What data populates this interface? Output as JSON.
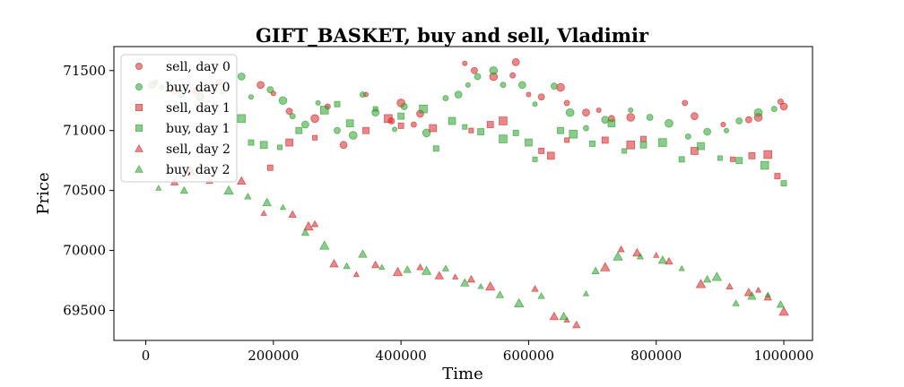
{
  "chart_data": {
    "type": "scatter",
    "title": "GIFT_BASKET, buy and sell, Vladimir",
    "xlabel": "Time",
    "ylabel": "Price",
    "xlim": [
      -50000,
      1045000
    ],
    "ylim": [
      69250,
      71700
    ],
    "xticks": [
      0,
      200000,
      400000,
      600000,
      800000,
      1000000
    ],
    "yticks": [
      69500,
      70000,
      70500,
      71000,
      71500
    ],
    "grid": false,
    "legend_position": "top-left",
    "colors": {
      "sell": "#d62728",
      "buy": "#2ca02c"
    },
    "series": [
      {
        "name": "sell, day 0",
        "marker": "circle",
        "color": "#d62728",
        "points": [
          [
            15000,
            71400
          ],
          [
            45000,
            71330
          ],
          [
            80000,
            71330
          ],
          [
            115000,
            71400
          ],
          [
            180000,
            71380
          ],
          [
            200000,
            71310
          ],
          [
            225000,
            71160
          ],
          [
            265000,
            71100
          ],
          [
            285000,
            71200
          ],
          [
            310000,
            70880
          ],
          [
            345000,
            71300
          ],
          [
            385000,
            71080
          ],
          [
            400000,
            71230
          ],
          [
            420000,
            71050
          ],
          [
            430000,
            71140
          ],
          [
            500000,
            71560
          ],
          [
            515000,
            71500
          ],
          [
            545000,
            71450
          ],
          [
            575000,
            71460
          ],
          [
            580000,
            71570
          ],
          [
            600000,
            71300
          ],
          [
            620000,
            71280
          ],
          [
            650000,
            71360
          ],
          [
            660000,
            71230
          ],
          [
            690000,
            71150
          ],
          [
            710000,
            71170
          ],
          [
            730000,
            71100
          ],
          [
            760000,
            71110
          ],
          [
            845000,
            71230
          ],
          [
            860000,
            71120
          ],
          [
            905000,
            71050
          ],
          [
            945000,
            71090
          ],
          [
            960000,
            71110
          ],
          [
            995000,
            71240
          ],
          [
            1000000,
            71200
          ]
        ]
      },
      {
        "name": "buy, day 0",
        "marker": "circle",
        "color": "#2ca02c",
        "points": [
          [
            10000,
            71380
          ],
          [
            25000,
            71360
          ],
          [
            55000,
            71300
          ],
          [
            85000,
            71280
          ],
          [
            120000,
            71320
          ],
          [
            150000,
            71450
          ],
          [
            165000,
            71280
          ],
          [
            195000,
            71340
          ],
          [
            215000,
            71250
          ],
          [
            230000,
            71120
          ],
          [
            250000,
            71050
          ],
          [
            270000,
            71230
          ],
          [
            300000,
            71000
          ],
          [
            325000,
            70960
          ],
          [
            340000,
            71300
          ],
          [
            360000,
            71150
          ],
          [
            390000,
            71010
          ],
          [
            405000,
            71200
          ],
          [
            440000,
            70980
          ],
          [
            470000,
            71270
          ],
          [
            490000,
            71300
          ],
          [
            505000,
            71380
          ],
          [
            520000,
            71450
          ],
          [
            545000,
            71500
          ],
          [
            560000,
            71380
          ],
          [
            590000,
            71380
          ],
          [
            610000,
            71220
          ],
          [
            640000,
            71370
          ],
          [
            665000,
            71150
          ],
          [
            690000,
            71020
          ],
          [
            720000,
            71090
          ],
          [
            760000,
            71170
          ],
          [
            790000,
            71110
          ],
          [
            820000,
            71060
          ],
          [
            850000,
            70950
          ],
          [
            880000,
            70990
          ],
          [
            910000,
            71000
          ],
          [
            930000,
            71080
          ],
          [
            960000,
            71150
          ],
          [
            985000,
            71180
          ]
        ]
      },
      {
        "name": "sell, day 1",
        "marker": "square",
        "color": "#d62728",
        "points": [
          [
            195000,
            70690
          ],
          [
            225000,
            70900
          ],
          [
            265000,
            70940
          ],
          [
            345000,
            71000
          ],
          [
            380000,
            71100
          ],
          [
            400000,
            71040
          ],
          [
            450000,
            71020
          ],
          [
            510000,
            71000
          ],
          [
            540000,
            71050
          ],
          [
            560000,
            71080
          ],
          [
            620000,
            70830
          ],
          [
            635000,
            70790
          ],
          [
            660000,
            70920
          ],
          [
            720000,
            70920
          ],
          [
            760000,
            70880
          ],
          [
            780000,
            70930
          ],
          [
            860000,
            70830
          ],
          [
            920000,
            70760
          ],
          [
            950000,
            70790
          ],
          [
            975000,
            70800
          ],
          [
            990000,
            70620
          ]
        ]
      },
      {
        "name": "buy, day 1",
        "marker": "square",
        "color": "#2ca02c",
        "points": [
          [
            150000,
            71100
          ],
          [
            165000,
            70900
          ],
          [
            185000,
            70880
          ],
          [
            210000,
            70860
          ],
          [
            240000,
            71000
          ],
          [
            280000,
            71170
          ],
          [
            300000,
            71220
          ],
          [
            320000,
            71060
          ],
          [
            360000,
            71180
          ],
          [
            400000,
            71120
          ],
          [
            435000,
            71180
          ],
          [
            455000,
            70850
          ],
          [
            480000,
            71080
          ],
          [
            500000,
            71030
          ],
          [
            525000,
            70990
          ],
          [
            560000,
            70930
          ],
          [
            580000,
            70980
          ],
          [
            600000,
            70900
          ],
          [
            610000,
            70760
          ],
          [
            650000,
            71000
          ],
          [
            670000,
            70970
          ],
          [
            700000,
            70890
          ],
          [
            730000,
            71060
          ],
          [
            750000,
            70830
          ],
          [
            780000,
            70880
          ],
          [
            810000,
            70900
          ],
          [
            840000,
            70760
          ],
          [
            870000,
            70870
          ],
          [
            900000,
            70770
          ],
          [
            930000,
            70750
          ],
          [
            970000,
            70710
          ],
          [
            1000000,
            70560
          ]
        ]
      },
      {
        "name": "sell, day 2",
        "marker": "triangle",
        "color": "#d62728",
        "points": [
          [
            45000,
            70570
          ],
          [
            70000,
            70660
          ],
          [
            100000,
            70580
          ],
          [
            150000,
            70580
          ],
          [
            185000,
            70310
          ],
          [
            230000,
            70300
          ],
          [
            255000,
            70200
          ],
          [
            265000,
            70220
          ],
          [
            295000,
            69890
          ],
          [
            330000,
            69800
          ],
          [
            360000,
            69880
          ],
          [
            395000,
            69820
          ],
          [
            430000,
            69860
          ],
          [
            460000,
            69790
          ],
          [
            485000,
            69780
          ],
          [
            510000,
            69760
          ],
          [
            540000,
            69700
          ],
          [
            610000,
            69680
          ],
          [
            640000,
            69450
          ],
          [
            660000,
            69420
          ],
          [
            675000,
            69380
          ],
          [
            720000,
            69860
          ],
          [
            745000,
            70010
          ],
          [
            770000,
            69980
          ],
          [
            800000,
            69960
          ],
          [
            820000,
            69910
          ],
          [
            870000,
            69720
          ],
          [
            915000,
            69700
          ],
          [
            945000,
            69650
          ],
          [
            960000,
            69670
          ],
          [
            975000,
            69610
          ],
          [
            1000000,
            69490
          ]
        ]
      },
      {
        "name": "buy, day 2",
        "marker": "triangle",
        "color": "#2ca02c",
        "points": [
          [
            20000,
            70520
          ],
          [
            60000,
            70500
          ],
          [
            130000,
            70500
          ],
          [
            160000,
            70450
          ],
          [
            190000,
            70400
          ],
          [
            215000,
            70360
          ],
          [
            250000,
            70150
          ],
          [
            280000,
            70040
          ],
          [
            315000,
            69870
          ],
          [
            340000,
            69970
          ],
          [
            370000,
            69860
          ],
          [
            410000,
            69840
          ],
          [
            440000,
            69830
          ],
          [
            470000,
            69850
          ],
          [
            500000,
            69730
          ],
          [
            525000,
            69700
          ],
          [
            555000,
            69630
          ],
          [
            585000,
            69560
          ],
          [
            620000,
            69620
          ],
          [
            655000,
            69450
          ],
          [
            690000,
            69640
          ],
          [
            705000,
            69830
          ],
          [
            740000,
            69950
          ],
          [
            775000,
            69950
          ],
          [
            810000,
            69920
          ],
          [
            840000,
            69850
          ],
          [
            880000,
            69760
          ],
          [
            895000,
            69780
          ],
          [
            925000,
            69560
          ],
          [
            950000,
            69620
          ],
          [
            975000,
            69630
          ],
          [
            995000,
            69550
          ]
        ]
      }
    ]
  }
}
